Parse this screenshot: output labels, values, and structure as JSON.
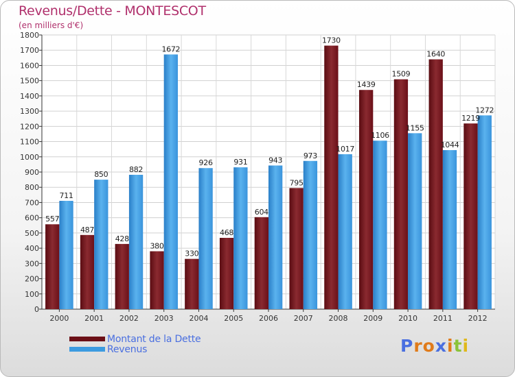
{
  "header": {
    "title": "Revenus/Dette - MONTESCOT",
    "subtitle": "(en milliers d'€)"
  },
  "legend": {
    "items": [
      {
        "label": "Montant de la Dette",
        "color": "#6b0f16"
      },
      {
        "label": "Revenus",
        "color": "#3c9be0"
      }
    ]
  },
  "logo": {
    "text": "Proxiti",
    "colors": [
      "#4a6fe0",
      "#e07b1a",
      "#e07b1a",
      "#4a6fe0",
      "#e07b1a",
      "#8ac33a",
      "#e0b81a"
    ]
  },
  "chart_data": {
    "type": "bar",
    "title": "Revenus/Dette - MONTESCOT",
    "subtitle": "(en milliers d'€)",
    "categories": [
      "2000",
      "2001",
      "2002",
      "2003",
      "2004",
      "2005",
      "2006",
      "2007",
      "2008",
      "2009",
      "2010",
      "2011",
      "2012"
    ],
    "series": [
      {
        "name": "Montant de la Dette",
        "color": "#7a1a22",
        "values": [
          557,
          487,
          428,
          380,
          330,
          468,
          604,
          795,
          1730,
          1439,
          1509,
          1640,
          1219
        ]
      },
      {
        "name": "Revenus",
        "color": "#3c9be0",
        "values": [
          711,
          850,
          882,
          1672,
          926,
          931,
          943,
          973,
          1017,
          1106,
          1155,
          1044,
          1272
        ]
      }
    ],
    "ylim": [
      0,
      1800
    ],
    "yticks": [
      0,
      100,
      200,
      300,
      400,
      500,
      600,
      700,
      800,
      900,
      1000,
      1100,
      1200,
      1300,
      1400,
      1500,
      1600,
      1700,
      1800
    ],
    "grid": true,
    "legend_position": "bottom-left"
  }
}
